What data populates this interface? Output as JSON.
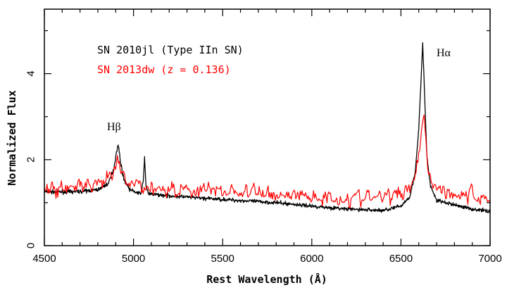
{
  "chart_data": {
    "type": "line",
    "xlabel": "Rest Wavelength (Å)",
    "ylabel": "Normalized Flux",
    "xlim": [
      4500,
      7000
    ],
    "ylim": [
      0,
      5.5
    ],
    "x_ticks": [
      4500,
      5000,
      5500,
      6000,
      6500,
      7000
    ],
    "y_ticks": [
      0,
      2,
      4
    ],
    "grid": false,
    "legend": "top-left, inside",
    "colors": {
      "black_series": "#000000",
      "red_series": "#ff0000"
    },
    "series": [
      {
        "name": "SN 2010jl (Type IIn SN)",
        "color": "#000000",
        "points": [
          [
            4500,
            1.25
          ],
          [
            4600,
            1.25
          ],
          [
            4700,
            1.26
          ],
          [
            4800,
            1.3
          ],
          [
            4860,
            1.45
          ],
          [
            4890,
            1.8
          ],
          [
            4905,
            2.2
          ],
          [
            4915,
            2.35
          ],
          [
            4925,
            2.0
          ],
          [
            4945,
            1.55
          ],
          [
            4980,
            1.3
          ],
          [
            5040,
            1.2
          ],
          [
            5055,
            1.5
          ],
          [
            5062,
            2.05
          ],
          [
            5070,
            1.4
          ],
          [
            5085,
            1.2
          ],
          [
            5200,
            1.16
          ],
          [
            5400,
            1.1
          ],
          [
            5600,
            1.05
          ],
          [
            5800,
            1.0
          ],
          [
            6000,
            0.92
          ],
          [
            6200,
            0.85
          ],
          [
            6400,
            0.82
          ],
          [
            6500,
            0.92
          ],
          [
            6550,
            1.15
          ],
          [
            6580,
            1.7
          ],
          [
            6600,
            2.7
          ],
          [
            6612,
            3.8
          ],
          [
            6622,
            4.7
          ],
          [
            6632,
            3.6
          ],
          [
            6645,
            2.1
          ],
          [
            6665,
            1.4
          ],
          [
            6700,
            1.05
          ],
          [
            6800,
            0.95
          ],
          [
            6900,
            0.85
          ],
          [
            7000,
            0.8
          ]
        ]
      },
      {
        "name": "SN 2013dw (z = 0.136)",
        "color": "#ff0000",
        "points": [
          [
            4500,
            1.28
          ],
          [
            4600,
            1.35
          ],
          [
            4700,
            1.38
          ],
          [
            4800,
            1.35
          ],
          [
            4880,
            1.6
          ],
          [
            4910,
            1.95
          ],
          [
            4925,
            1.75
          ],
          [
            4960,
            1.45
          ],
          [
            5100,
            1.35
          ],
          [
            5300,
            1.3
          ],
          [
            5500,
            1.28
          ],
          [
            5700,
            1.22
          ],
          [
            5900,
            1.18
          ],
          [
            6100,
            1.12
          ],
          [
            6300,
            1.1
          ],
          [
            6450,
            1.15
          ],
          [
            6540,
            1.3
          ],
          [
            6580,
            1.7
          ],
          [
            6605,
            2.3
          ],
          [
            6620,
            2.8
          ],
          [
            6630,
            3.05
          ],
          [
            6640,
            2.4
          ],
          [
            6655,
            1.75
          ],
          [
            6680,
            1.45
          ],
          [
            6750,
            1.25
          ],
          [
            6900,
            1.15
          ],
          [
            7000,
            1.1
          ]
        ]
      }
    ],
    "annotations": [
      {
        "text": "Hβ",
        "x": 4895,
        "y": 2.6
      },
      {
        "text": "Hα",
        "x": 6725,
        "y": 4.5
      }
    ]
  }
}
